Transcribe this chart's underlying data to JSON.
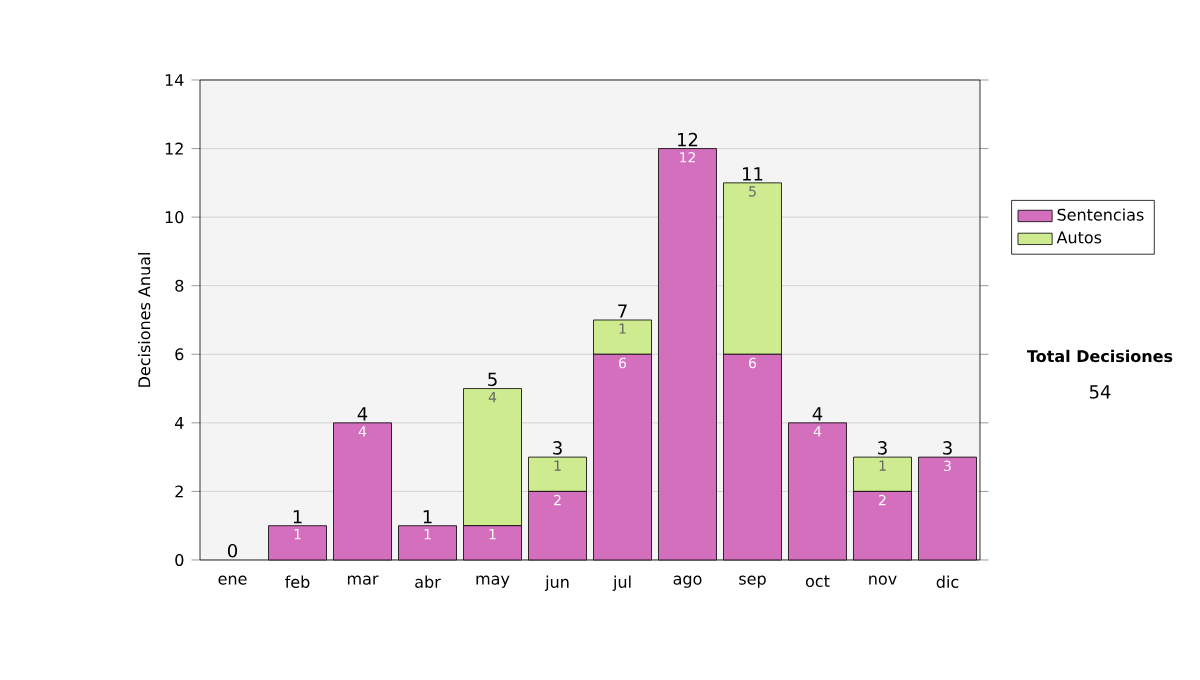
{
  "chart_data": {
    "type": "bar",
    "stacked": true,
    "ylabel": "Decisiones Anual",
    "categories": [
      "ene",
      "feb",
      "mar",
      "abr",
      "may",
      "jun",
      "jul",
      "ago",
      "sep",
      "oct",
      "nov",
      "dic"
    ],
    "series": [
      {
        "name": "Sentencias",
        "color": "#d46fbd",
        "values": [
          0,
          1,
          4,
          1,
          1,
          2,
          6,
          12,
          6,
          4,
          2,
          3
        ],
        "value_labels": [
          null,
          "1",
          "4",
          "1",
          "1",
          "2",
          "6",
          "12",
          "6",
          "4",
          "2",
          "3"
        ]
      },
      {
        "name": "Autos",
        "color": "#cfeb8f",
        "values": [
          0,
          0,
          0,
          0,
          4,
          1,
          1,
          0,
          5,
          0,
          1,
          0
        ],
        "value_labels": [
          null,
          null,
          null,
          null,
          "4",
          "1",
          "1",
          null,
          "5",
          null,
          "1",
          null
        ]
      }
    ],
    "totals": [
      "0",
      "1",
      "4",
      "1",
      "5",
      "3",
      "7",
      "12",
      "11",
      "4",
      "3",
      "3"
    ],
    "ylim": [
      0,
      14
    ],
    "yticks": [
      0,
      2,
      4,
      6,
      8,
      10,
      12,
      14
    ],
    "grid": "y",
    "legend": "right",
    "annotations": [
      "Total Decisiones",
      "54"
    ]
  }
}
